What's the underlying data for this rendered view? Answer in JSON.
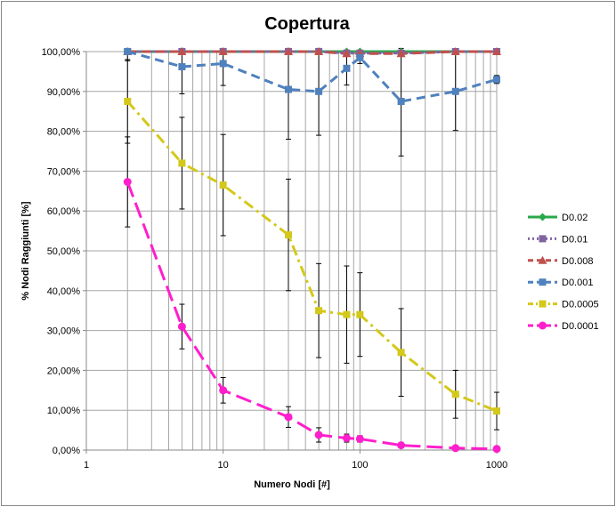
{
  "chart_data": {
    "type": "line",
    "title": "Copertura",
    "xlabel": "Numero Nodi [#]",
    "ylabel": "% Nodi Raggiunti [%]",
    "x_scale": "log",
    "xlim": [
      1,
      1000
    ],
    "ylim": [
      0,
      100
    ],
    "x_ticks": [
      "1",
      "10",
      "100",
      "1000"
    ],
    "y_ticks": [
      "0,00%",
      "10,00%",
      "20,00%",
      "30,00%",
      "40,00%",
      "50,00%",
      "60,00%",
      "70,00%",
      "80,00%",
      "90,00%",
      "100,00%"
    ],
    "grid": true,
    "legend_position": "right",
    "x": [
      2,
      5,
      10,
      30,
      50,
      80,
      100,
      200,
      500,
      1000
    ],
    "series": [
      {
        "name": "D0.02",
        "color": "#2aa84a",
        "marker": "diamond",
        "dash": "solid",
        "values": [
          100,
          100,
          100,
          100,
          100,
          100,
          100,
          100,
          100,
          100
        ],
        "errors": [
          0,
          0,
          0,
          0,
          0,
          0,
          0,
          0,
          0,
          0
        ]
      },
      {
        "name": "D0.01",
        "color": "#8064a2",
        "marker": "square",
        "dash": "dot",
        "values": [
          100,
          100,
          100,
          100,
          100,
          99.6,
          99.6,
          99.6,
          100,
          100
        ],
        "errors": [
          0,
          0,
          0,
          0,
          0,
          0,
          0,
          0,
          0,
          0
        ]
      },
      {
        "name": "D0.008",
        "color": "#c0504d",
        "marker": "triangle",
        "dash": "dash",
        "values": [
          100,
          100,
          100,
          100,
          100,
          99.5,
          99.5,
          99.5,
          100,
          100
        ],
        "errors": [
          0,
          0,
          0,
          0,
          0,
          0,
          0,
          0,
          0,
          0
        ]
      },
      {
        "name": "D0.001",
        "color": "#4f81bd",
        "marker": "square",
        "dash": "dash",
        "values": [
          100,
          96.2,
          97,
          90.5,
          90,
          95.8,
          98.5,
          87.5,
          90,
          93
        ],
        "errors": [
          2.3,
          6.8,
          5.5,
          12.5,
          11,
          4.2,
          1.5,
          13.7,
          9.8,
          1
        ]
      },
      {
        "name": "D0.0005",
        "color": "#d4c81a",
        "marker": "square",
        "dash": "dashdot",
        "values": [
          87.5,
          72,
          66.5,
          54,
          35,
          34,
          34,
          24.5,
          14,
          9.8
        ],
        "errors": [
          10.5,
          11.5,
          12.7,
          14,
          11.8,
          12.2,
          10.5,
          11,
          6,
          4.7
        ]
      },
      {
        "name": "D0.0001",
        "color": "#ff1ecc",
        "marker": "circle",
        "dash": "longdash",
        "values": [
          67.3,
          31,
          15,
          8.3,
          3.8,
          3,
          2.8,
          1.2,
          0.5,
          0.3
        ],
        "errors": [
          11.3,
          5.6,
          3.2,
          2.6,
          1.8,
          1,
          0.8,
          0.5,
          0.2,
          0.1
        ]
      }
    ]
  }
}
